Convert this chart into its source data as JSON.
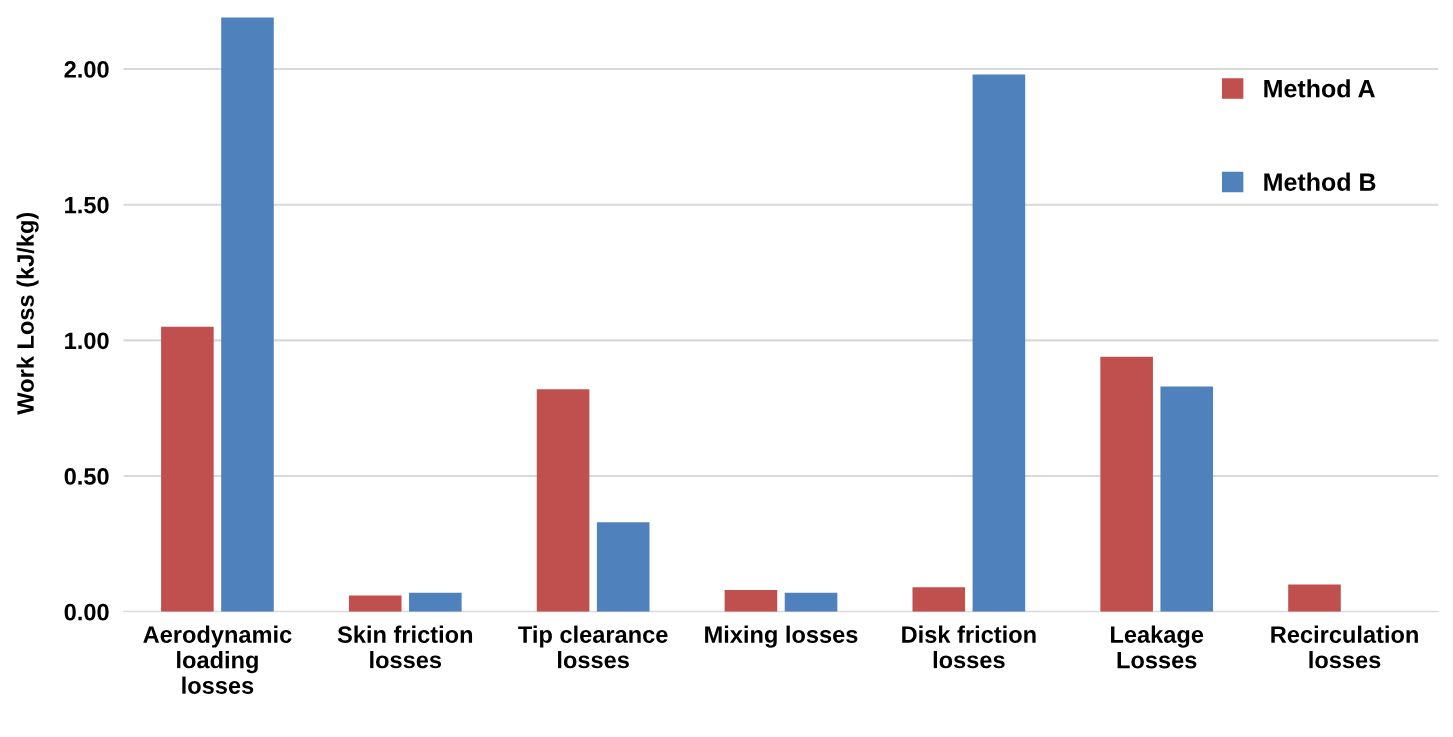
{
  "chart_data": {
    "type": "bar",
    "ylabel": "Work Loss (kJ/kg)",
    "categories": [
      "Aerodynamic\nloading\nlosses",
      "Skin friction\nlosses",
      "Tip clearance\nlosses",
      "Mixing losses",
      "Disk friction\nlosses",
      "Leakage\nLosses",
      "Recirculation\nlosses"
    ],
    "series": [
      {
        "name": "Method A",
        "color": "#c0504d",
        "values": [
          1.05,
          0.06,
          0.82,
          0.08,
          0.09,
          0.94,
          0.1
        ]
      },
      {
        "name": "Method B",
        "color": "#4f81bd",
        "values": [
          2.19,
          0.07,
          0.33,
          0.07,
          1.98,
          0.83,
          null
        ]
      }
    ],
    "ylim": [
      0,
      2.2
    ],
    "yticks": [
      {
        "value": 0,
        "label": "0.00"
      },
      {
        "value": 0.5,
        "label": "0.50"
      },
      {
        "value": 1,
        "label": "1.00"
      },
      {
        "value": 1.5,
        "label": "1.50"
      },
      {
        "value": 2,
        "label": "2.00"
      }
    ],
    "grid": "y",
    "legend": "top right"
  }
}
